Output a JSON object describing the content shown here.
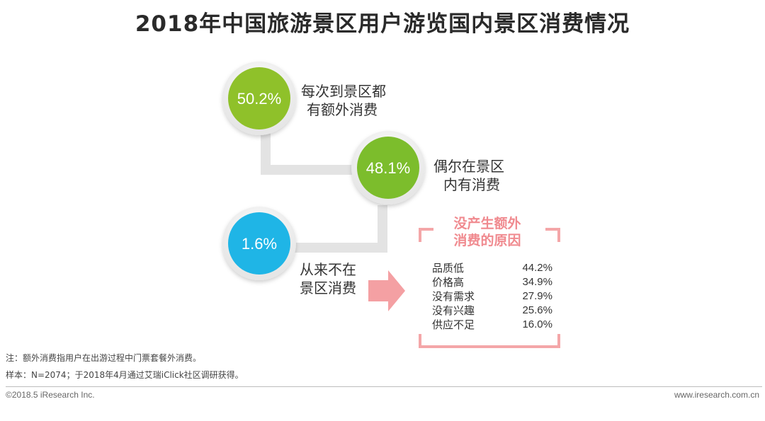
{
  "title": "2018年中国旅游景区用户游览国内景区消费情况",
  "chart_data": {
    "type": "infographic",
    "bubbles": [
      {
        "value": "50.2%",
        "label_line1": "每次到景区都",
        "label_line2": "有额外消费",
        "color": "#8fc12a"
      },
      {
        "value": "48.1%",
        "label_line1": "偶尔在景区",
        "label_line2": "内有消费",
        "color": "#7cbd2c"
      },
      {
        "value": "1.6%",
        "label_line1": "从来不在",
        "label_line2": "景区消费",
        "color": "#1fb5e6"
      }
    ],
    "reasons_title_line1": "没产生额外",
    "reasons_title_line2": "消费的原因",
    "reasons": [
      {
        "label": "品质低",
        "value": "44.2%"
      },
      {
        "label": "价格高",
        "value": "34.9%"
      },
      {
        "label": "没有需求",
        "value": "27.9%"
      },
      {
        "label": "没有兴趣",
        "value": "25.6%"
      },
      {
        "label": "供应不足",
        "value": "16.0%"
      }
    ],
    "accent_color": "#f08a8f"
  },
  "notes": {
    "note1": "注：额外消费指用户在出游过程中门票套餐外消费。",
    "note2": "样本：N=2074；于2018年4月通过艾瑞iClick社区调研获得。"
  },
  "footer": {
    "left": "©2018.5 iResearch Inc.",
    "right": "www.iresearch.com.cn"
  }
}
